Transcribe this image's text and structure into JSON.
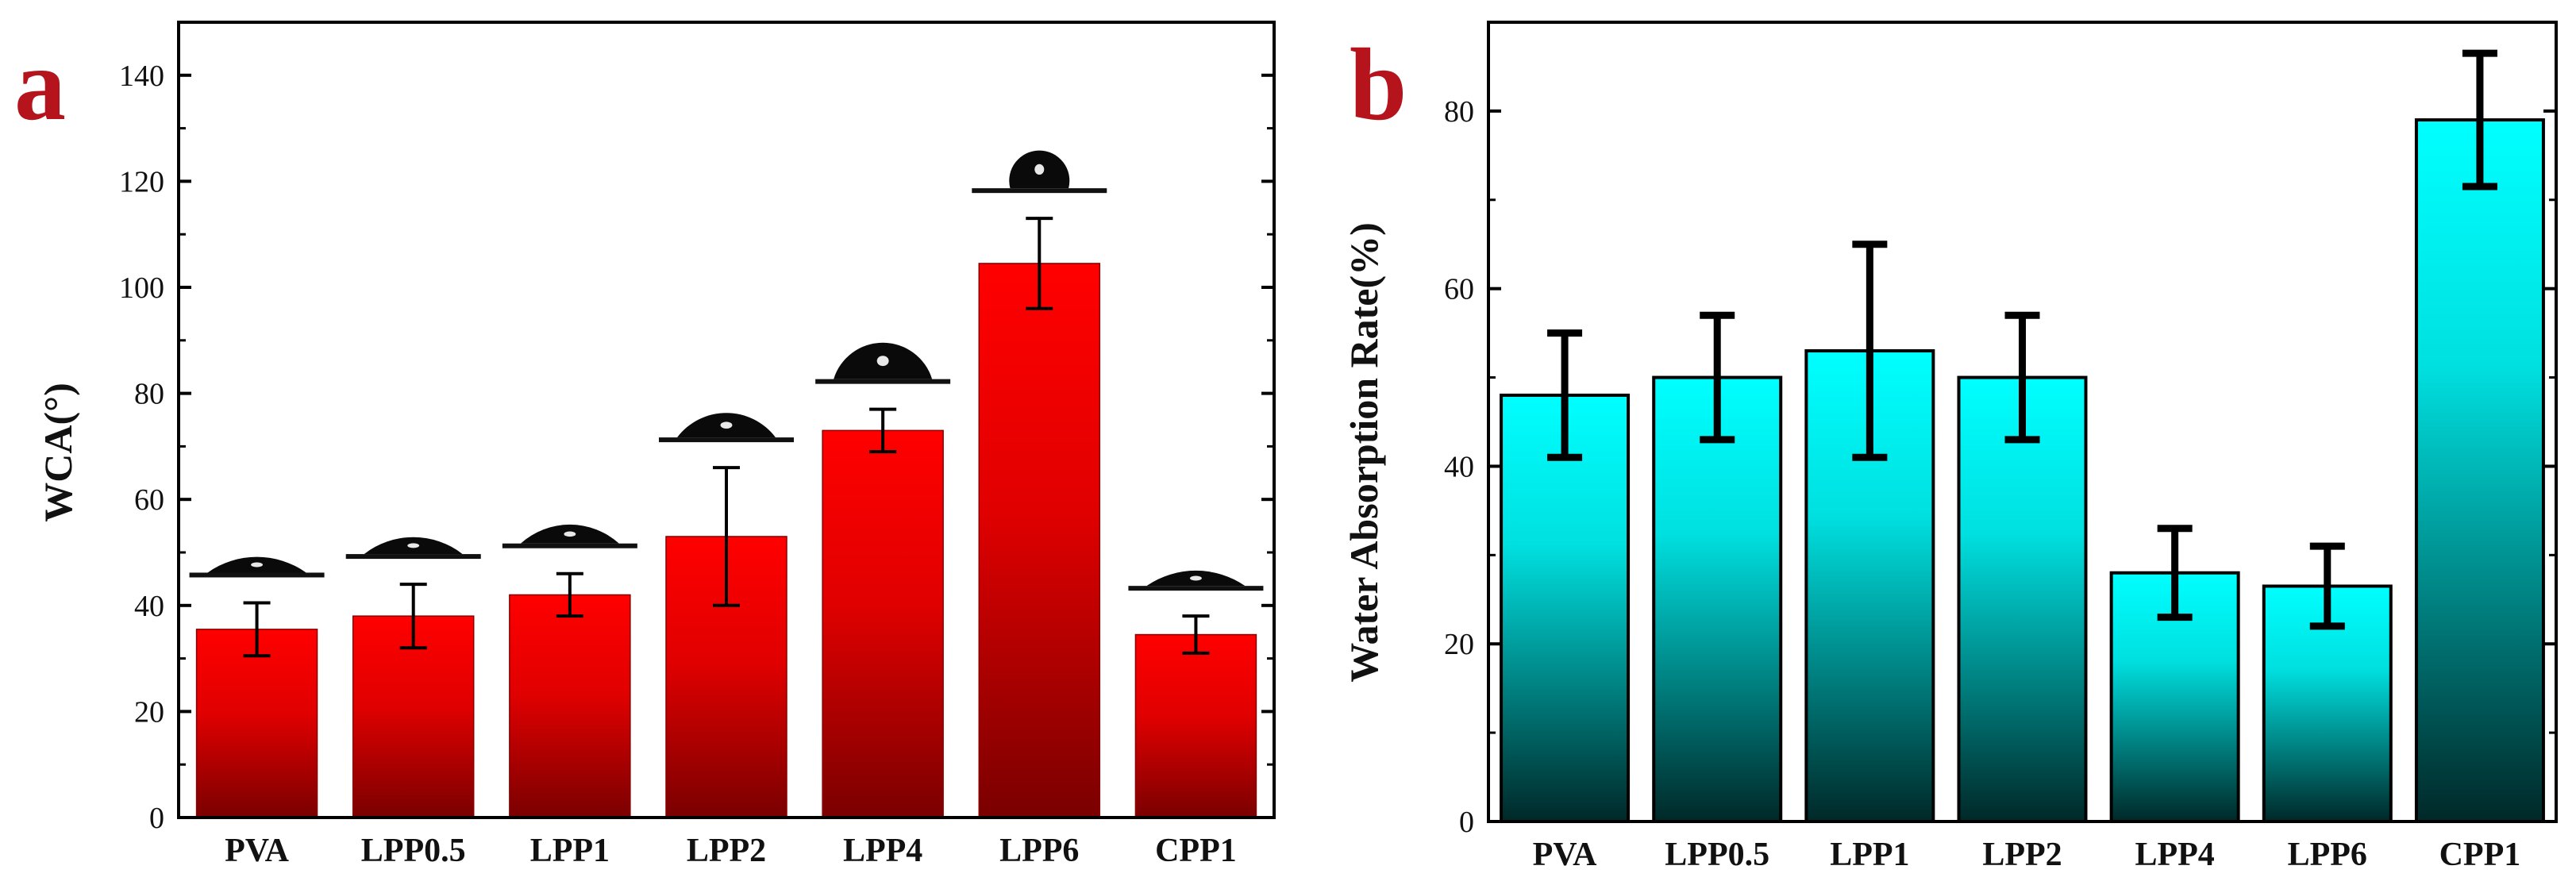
{
  "chart_data": [
    {
      "type": "bar",
      "panel_label": "a",
      "title": "",
      "xlabel": "",
      "ylabel": "WCA(°)",
      "ylim": [
        0,
        150
      ],
      "yticks": [
        0,
        20,
        40,
        60,
        80,
        100,
        120,
        140
      ],
      "categories": [
        "PVA",
        "LPP0.5",
        "LPP1",
        "LPP2",
        "LPP4",
        "LPP6",
        "CPP1"
      ],
      "values": [
        35.5,
        38,
        42,
        53,
        73,
        104.5,
        34.5
      ],
      "errors": [
        5,
        6,
        4,
        13,
        4,
        8.5,
        3.5
      ],
      "bar_color": "#ff0000",
      "bar_color_dark": "#7a0000",
      "droplet_insets": true
    },
    {
      "type": "bar",
      "panel_label": "b",
      "title": "",
      "xlabel": "",
      "ylabel": "Water Absorption Rate(%)",
      "ylim": [
        0,
        90
      ],
      "yticks": [
        0,
        20,
        40,
        60,
        80
      ],
      "categories": [
        "PVA",
        "LPP0.5",
        "LPP1",
        "LPP2",
        "LPP4",
        "LPP6",
        "CPP1"
      ],
      "values": [
        48,
        50,
        53,
        50,
        28,
        26.5,
        79
      ],
      "errors": [
        7,
        7,
        12,
        7,
        5,
        4.5,
        7.5
      ],
      "bar_color": "#00ffff",
      "bar_color_dark": "#002828",
      "droplet_insets": false
    }
  ]
}
